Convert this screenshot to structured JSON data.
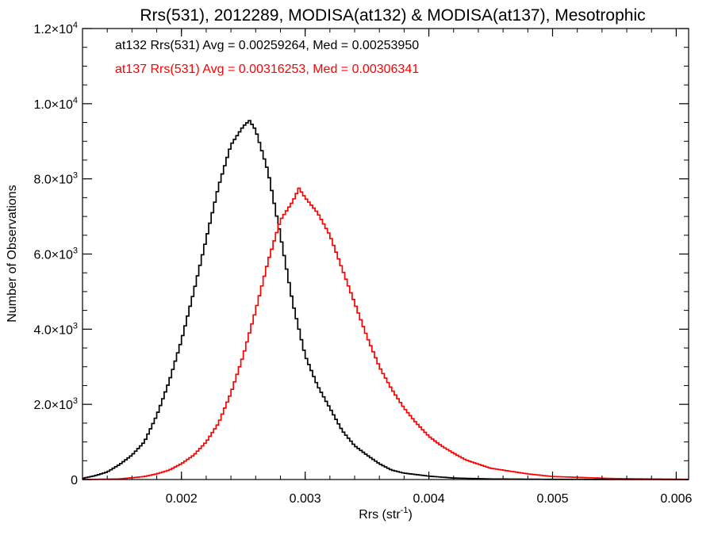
{
  "chart_data": {
    "type": "line",
    "step": true,
    "title": "Rrs(531), 2012289, MODISA(at132) & MODISA(at137), Mesotrophic",
    "xlabel": "Rrs (str",
    "xlabel_sup": "-1",
    "xlabel_end": ")",
    "ylabel": "Number of Observations",
    "xlim": [
      0.0012,
      0.0061
    ],
    "ylim": [
      0,
      12000
    ],
    "grid": false,
    "x_ticks": [
      {
        "value": 0.002,
        "label": "0.002"
      },
      {
        "value": 0.003,
        "label": "0.003"
      },
      {
        "value": 0.004,
        "label": "0.004"
      },
      {
        "value": 0.005,
        "label": "0.005"
      },
      {
        "value": 0.006,
        "label": "0.006"
      }
    ],
    "y_ticks": [
      {
        "value": 0,
        "mant": "0",
        "exp": ""
      },
      {
        "value": 2000,
        "mant": "2.0×10",
        "exp": "3"
      },
      {
        "value": 4000,
        "mant": "4.0×10",
        "exp": "3"
      },
      {
        "value": 6000,
        "mant": "6.0×10",
        "exp": "3"
      },
      {
        "value": 8000,
        "mant": "8.0×10",
        "exp": "3"
      },
      {
        "value": 10000,
        "mant": "1.0×10",
        "exp": "4"
      },
      {
        "value": 12000,
        "mant": "1.2×10",
        "exp": "4"
      }
    ],
    "annotations": [
      {
        "text": "at132 Rrs(531) Avg = 0.00259264, Med = 0.00253950",
        "color": "#000000"
      },
      {
        "text": "at137 Rrs(531) Avg = 0.00316253, Med = 0.00306341",
        "color": "#ff0000"
      }
    ],
    "series": [
      {
        "color": "#000000",
        "x": [
          0.0012,
          0.0013,
          0.0014,
          0.0015,
          0.0016,
          0.0017,
          0.0018,
          0.0019,
          0.002,
          0.0021,
          0.0022,
          0.0023,
          0.0024,
          0.0025,
          0.00255,
          0.0026,
          0.0027,
          0.0028,
          0.0029,
          0.003,
          0.0031,
          0.0032,
          0.0033,
          0.0034,
          0.0035,
          0.0036,
          0.0037,
          0.0038,
          0.004,
          0.0042,
          0.0045,
          0.005,
          0.0055,
          0.0061
        ],
        "values": [
          30,
          100,
          200,
          400,
          650,
          1000,
          1700,
          2600,
          3700,
          5000,
          6400,
          7800,
          8900,
          9400,
          9550,
          9300,
          8200,
          6500,
          4700,
          3300,
          2500,
          1900,
          1300,
          900,
          650,
          420,
          250,
          170,
          90,
          40,
          15,
          5,
          2,
          0
        ]
      },
      {
        "color": "#ff0000",
        "x": [
          0.0012,
          0.0015,
          0.0017,
          0.0018,
          0.0019,
          0.002,
          0.0021,
          0.0022,
          0.0023,
          0.0024,
          0.0025,
          0.0026,
          0.0027,
          0.0028,
          0.0029,
          0.00295,
          0.003,
          0.0031,
          0.0032,
          0.0033,
          0.0034,
          0.0035,
          0.0036,
          0.0037,
          0.0038,
          0.0039,
          0.004,
          0.0041,
          0.0042,
          0.0043,
          0.0045,
          0.0048,
          0.005,
          0.0055,
          0.0061
        ],
        "values": [
          0,
          15,
          80,
          150,
          250,
          420,
          650,
          1000,
          1500,
          2300,
          3300,
          4500,
          5800,
          6900,
          7400,
          7750,
          7500,
          7100,
          6500,
          5600,
          4700,
          3800,
          3000,
          2400,
          1900,
          1500,
          1150,
          900,
          700,
          520,
          300,
          150,
          80,
          25,
          5
        ]
      }
    ]
  }
}
